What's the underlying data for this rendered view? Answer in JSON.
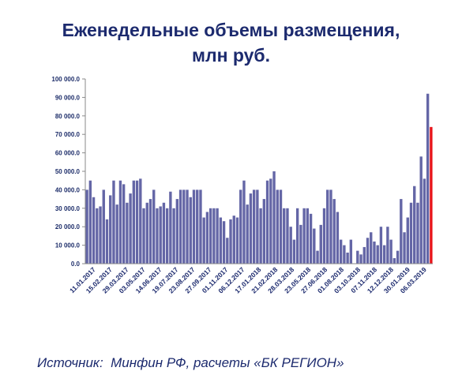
{
  "title_line1": "Еженедельные объемы размещения,",
  "title_line2": "млн руб.",
  "source": "Источник:  Минфин РФ, расчеты «БК РЕГИОН»",
  "colors": {
    "bar": "#6466a6",
    "highlight": "#e8141a",
    "title": "#1c2a6e",
    "axis_text": "#1f2f6b",
    "date_text": "#1c2a6e"
  },
  "chart_data": {
    "type": "bar",
    "title": "Еженедельные объемы размещения, млн руб.",
    "xlabel": "",
    "ylabel": "",
    "ylim": [
      0,
      100000
    ],
    "y_ticks": [
      "0.0",
      "10 000.0",
      "20 000.0",
      "30 000.0",
      "40 000.0",
      "50 000.0",
      "60 000.0",
      "70 000.0",
      "80 000.0",
      "90 000.0",
      "100 000.0"
    ],
    "x_tick_labels": [
      "11.01.2017",
      "15.02.2017",
      "29.03.2017",
      "03.05.2017",
      "14.06.2017",
      "19.07.2017",
      "23.08.2017",
      "27.09.2017",
      "01.11.2017",
      "06.12.2017",
      "17.01.2018",
      "21.02.2018",
      "28.03.2018",
      "23.05.2018",
      "27.06.2018",
      "01.08.2018",
      "03.10.2018",
      "07.11.2018",
      "12.12.2018",
      "30.01.2019",
      "06.03.2019"
    ],
    "values": [
      40000,
      45000,
      36000,
      30000,
      31000,
      40000,
      24000,
      37000,
      45000,
      32000,
      45000,
      43000,
      33000,
      38000,
      45000,
      45000,
      46000,
      30000,
      33000,
      35000,
      40000,
      30000,
      31000,
      33000,
      30000,
      39000,
      30000,
      35000,
      40000,
      40000,
      40000,
      36000,
      40000,
      40000,
      40000,
      25000,
      28000,
      30000,
      30000,
      30000,
      25000,
      23000,
      14000,
      24000,
      26000,
      25000,
      40000,
      45000,
      32000,
      38000,
      40000,
      40000,
      30000,
      35000,
      45000,
      46000,
      50000,
      40000,
      40000,
      30000,
      30000,
      20000,
      13000,
      30000,
      21000,
      30000,
      30000,
      27000,
      19000,
      7000,
      21000,
      30000,
      40000,
      40000,
      35000,
      28000,
      13000,
      10000,
      6000,
      13000,
      0,
      7000,
      5000,
      9000,
      14000,
      17000,
      12000,
      10000,
      20000,
      10000,
      20000,
      13000,
      3000,
      7000,
      35000,
      17000,
      25000,
      33000,
      42000,
      33000,
      58000,
      46000,
      92000,
      74000
    ],
    "highlight_last": true,
    "grid": false,
    "legend": "none"
  }
}
